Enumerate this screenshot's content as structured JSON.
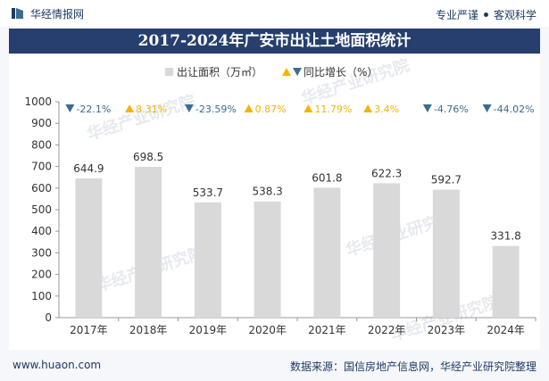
{
  "header": {
    "brand": "华经情报网",
    "tagline_left": "专业严谨",
    "tagline_right": "客观科学"
  },
  "title": "2017-2024年广安市出让土地面积统计",
  "footer": {
    "site": "www.huaon.com",
    "source": "数据来源：国信房地产信息网，华经产业研究院整理"
  },
  "watermark": "华经产业研究院",
  "colors": {
    "bar": "#d9d9d9",
    "up": "#f5b400",
    "down": "#3a6d8f",
    "title_bg": "#263f6e",
    "text": "#1f3a64"
  },
  "chart_data": {
    "type": "bar",
    "title": "2017-2024年广安市出让土地面积统计",
    "categories": [
      "2017年",
      "2018年",
      "2019年",
      "2020年",
      "2021年",
      "2022年",
      "2023年",
      "2024年"
    ],
    "series": [
      {
        "name": "出让面积（万㎡）",
        "values": [
          644.9,
          698.5,
          533.7,
          538.3,
          601.8,
          622.3,
          592.7,
          331.8
        ],
        "value_labels": [
          "644.9",
          "698.5",
          "533.7",
          "538.3",
          "601.8",
          "622.3",
          "592.7",
          "331.8"
        ]
      },
      {
        "name": "同比增长（%）",
        "values": [
          -22.1,
          8.31,
          -23.59,
          0.87,
          11.79,
          3.4,
          -4.76,
          -44.02
        ],
        "value_labels": [
          "-22.1%",
          "8.31%",
          "-23.59%",
          "0.87%",
          "11.79%",
          "3.4%",
          "-4.76%",
          "-44.02%"
        ],
        "direction": [
          "down",
          "up",
          "down",
          "up",
          "up",
          "up",
          "down",
          "down"
        ]
      }
    ],
    "legend": {
      "area_label": "出让面积（万㎡）",
      "growth_label": "同比增长（%）",
      "position": "top-center"
    },
    "ylim": [
      0,
      1000
    ],
    "yticks": [
      0,
      100,
      200,
      300,
      400,
      500,
      600,
      700,
      800,
      900,
      1000
    ],
    "xlabel": "",
    "ylabel": "",
    "grid": false
  }
}
